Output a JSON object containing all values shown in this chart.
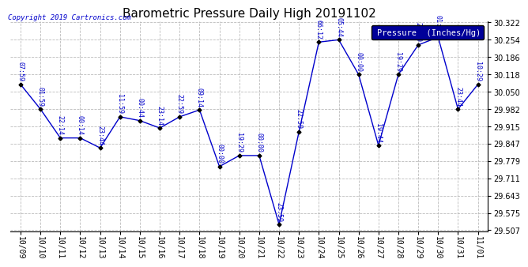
{
  "title": "Barometric Pressure Daily High 20191102",
  "copyright": "Copyright 2019 Cartronics.com",
  "legend_label": "Pressure  (Inches/Hg)",
  "ylim_min": 29.507,
  "ylim_max": 30.322,
  "yticks": [
    29.507,
    29.575,
    29.643,
    29.711,
    29.779,
    29.847,
    29.915,
    29.982,
    30.05,
    30.118,
    30.186,
    30.254,
    30.322
  ],
  "background_color": "#ffffff",
  "grid_color": "#aaaaaa",
  "line_color": "#0000cc",
  "marker_color": "#000000",
  "title_color": "#000000",
  "copyright_color": "#0000cc",
  "legend_bg": "#000099",
  "legend_text_color": "#ffffff",
  "data": [
    {
      "date": "10/09",
      "value": 30.079,
      "label": "07:59"
    },
    {
      "date": "10/10",
      "value": 29.982,
      "label": "01:59"
    },
    {
      "date": "10/11",
      "value": 29.869,
      "label": "22:14"
    },
    {
      "date": "10/12",
      "value": 29.869,
      "label": "00:14"
    },
    {
      "date": "10/13",
      "value": 29.83,
      "label": "23:44"
    },
    {
      "date": "10/14",
      "value": 29.952,
      "label": "11:59"
    },
    {
      "date": "10/15",
      "value": 29.937,
      "label": "00:44"
    },
    {
      "date": "10/16",
      "value": 29.908,
      "label": "23:14"
    },
    {
      "date": "10/17",
      "value": 29.952,
      "label": "22:59"
    },
    {
      "date": "10/18",
      "value": 29.979,
      "label": "09:14"
    },
    {
      "date": "10/19",
      "value": 29.757,
      "label": "00:00"
    },
    {
      "date": "10/20",
      "value": 29.8,
      "label": "19:29"
    },
    {
      "date": "10/21",
      "value": 29.8,
      "label": "00:00"
    },
    {
      "date": "10/22",
      "value": 29.53,
      "label": "23:59"
    },
    {
      "date": "10/23",
      "value": 29.893,
      "label": "22:59"
    },
    {
      "date": "10/24",
      "value": 30.245,
      "label": "66:12"
    },
    {
      "date": "10/25",
      "value": 30.254,
      "label": "05:44"
    },
    {
      "date": "10/26",
      "value": 30.118,
      "label": "00:00"
    },
    {
      "date": "10/27",
      "value": 29.84,
      "label": "19:44"
    },
    {
      "date": "10/28",
      "value": 30.118,
      "label": "19:29"
    },
    {
      "date": "10/29",
      "value": 30.234,
      "label": "22:59"
    },
    {
      "date": "10/30",
      "value": 30.264,
      "label": "01:14"
    },
    {
      "date": "10/31",
      "value": 29.982,
      "label": "23:44"
    },
    {
      "date": "11/01",
      "value": 30.079,
      "label": "10:29"
    }
  ]
}
